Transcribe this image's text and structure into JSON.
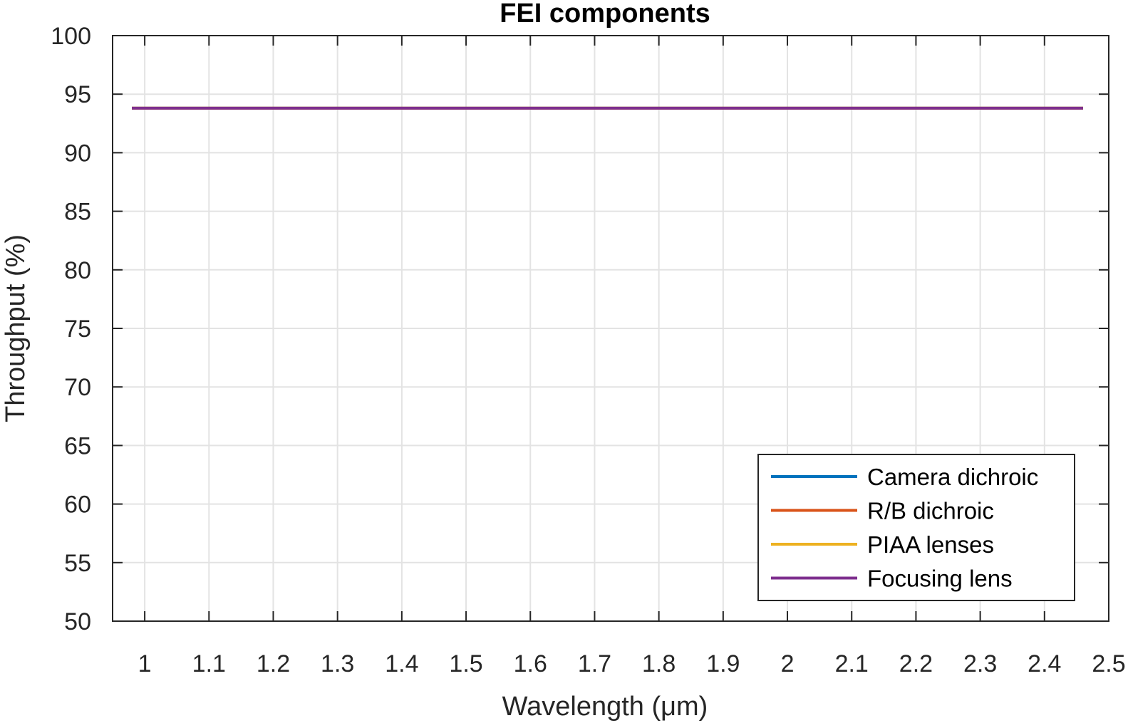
{
  "chart_data": {
    "type": "line",
    "title": "FEI components",
    "xlabel": "Wavelength (μm)",
    "ylabel": "Throughput (%)",
    "xlim": [
      0.95,
      2.5
    ],
    "ylim": [
      50,
      100
    ],
    "xticks": [
      1,
      1.1,
      1.2,
      1.3,
      1.4,
      1.5,
      1.6,
      1.7,
      1.8,
      1.9,
      2,
      2.1,
      2.2,
      2.3,
      2.4,
      2.5
    ],
    "yticks": [
      50,
      55,
      60,
      65,
      70,
      75,
      80,
      85,
      90,
      95,
      100
    ],
    "grid": true,
    "legend_position": "bottom-right",
    "series": [
      {
        "name": "Camera dichroic",
        "color": "#0072BD",
        "x": [
          0.98,
          2.46
        ],
        "y": [
          93.8,
          93.8
        ]
      },
      {
        "name": "R/B dichroic",
        "color": "#D95319",
        "x": [
          0.98,
          2.46
        ],
        "y": [
          93.8,
          93.8
        ]
      },
      {
        "name": "PIAA lenses",
        "color": "#EDB120",
        "x": [
          0.98,
          2.46
        ],
        "y": [
          93.8,
          93.8
        ]
      },
      {
        "name": "Focusing lens",
        "color": "#7E2F8E",
        "x": [
          0.98,
          2.46
        ],
        "y": [
          93.8,
          93.8
        ]
      }
    ]
  }
}
